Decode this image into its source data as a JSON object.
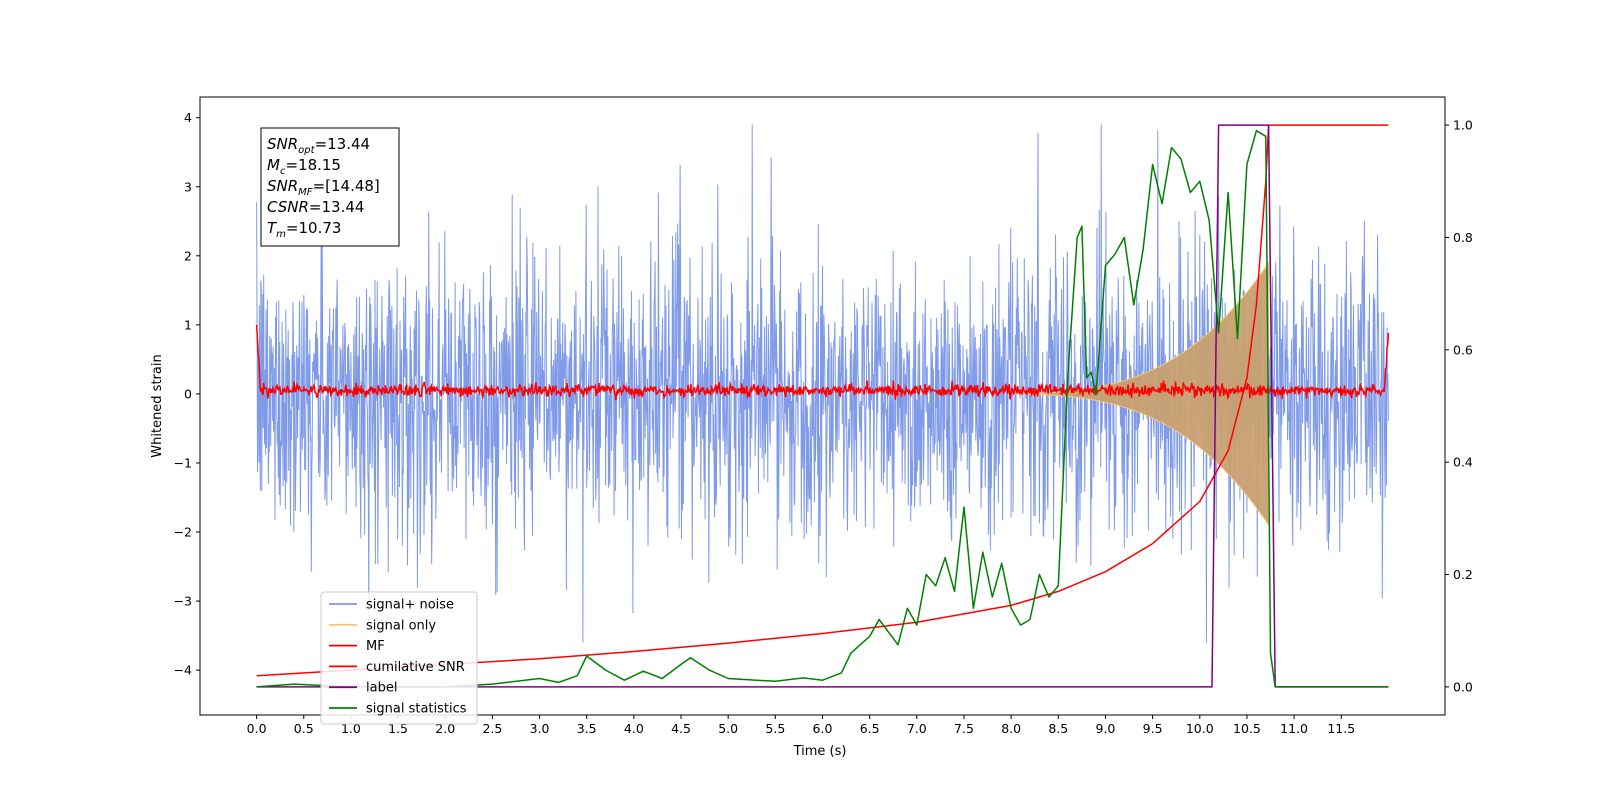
{
  "chart_data": {
    "type": "line",
    "xlabel": "Time (s)",
    "ylabel": "Whitened strain",
    "xlim": [
      -0.6,
      12.6
    ],
    "ylim": [
      -4.65,
      4.3
    ],
    "y2lim": [
      -0.05,
      1.05
    ],
    "x_ticks": [
      "0.0",
      "0.5",
      "1.0",
      "1.5",
      "2.0",
      "2.5",
      "3.0",
      "3.5",
      "4.0",
      "4.5",
      "5.0",
      "5.5",
      "6.0",
      "6.5",
      "7.0",
      "7.5",
      "8.0",
      "8.5",
      "9.0",
      "9.5",
      "10.0",
      "10.5",
      "11.0",
      "11.5"
    ],
    "y_ticks": [
      "4",
      "3",
      "2",
      "1",
      "0",
      "−1",
      "−2",
      "−3",
      "−4"
    ],
    "y2_ticks": [
      "1.0",
      "0.8",
      "0.6",
      "0.4",
      "0.2",
      "0.0"
    ],
    "annotation": {
      "snr_opt": {
        "base": "SNR",
        "sub": "opt",
        "value": "=13.44"
      },
      "mc": {
        "base": "M",
        "sub": "c",
        "value": "=18.15"
      },
      "snr_mf": {
        "base": "SNR",
        "sub": "MF",
        "value": "=[14.48]"
      },
      "csnr": {
        "base": "CSNR",
        "sub": "",
        "value": "=13.44"
      },
      "tm": {
        "base": "T",
        "sub": "m",
        "value": "=10.73"
      }
    },
    "legend_position": "lower-left",
    "series": [
      {
        "name": "signal+ noise",
        "color": "#7895e8",
        "axis": "left",
        "description_range": [
          -3.6,
          3.9
        ]
      },
      {
        "name": "signal only",
        "color": "#f5c97a",
        "axis": "left",
        "merger_time": 10.73,
        "max_amplitude": 1.9
      },
      {
        "name": "MF",
        "color": "#ff0000",
        "axis": "left",
        "baseline": 0.05,
        "edge_peak": 1.0
      },
      {
        "name": "cumilative SNR",
        "color": "#ff0000",
        "axis": "right",
        "x": [
          0.0,
          1.0,
          2.0,
          3.0,
          4.0,
          5.0,
          6.0,
          7.0,
          7.5,
          8.0,
          8.5,
          9.0,
          9.5,
          10.0,
          10.3,
          10.5,
          10.6,
          10.7,
          10.73,
          10.8,
          12.0
        ],
        "values": [
          0.02,
          0.03,
          0.04,
          0.05,
          0.063,
          0.078,
          0.095,
          0.115,
          0.13,
          0.145,
          0.17,
          0.205,
          0.255,
          0.33,
          0.42,
          0.55,
          0.68,
          0.9,
          1.0,
          1.0,
          1.0
        ]
      },
      {
        "name": "label",
        "color": "#800080",
        "axis": "right",
        "x": [
          0.0,
          10.13,
          10.2,
          10.73,
          10.8,
          12.0
        ],
        "values": [
          0.0,
          0.0,
          1.0,
          1.0,
          0.0,
          0.0
        ]
      },
      {
        "name": "signal statistics",
        "color": "#008000",
        "axis": "right",
        "x": [
          0.0,
          0.4,
          1.0,
          2.0,
          2.5,
          3.0,
          3.2,
          3.4,
          3.5,
          3.7,
          3.9,
          4.1,
          4.3,
          4.5,
          4.6,
          4.8,
          5.0,
          5.5,
          5.8,
          6.0,
          6.2,
          6.3,
          6.5,
          6.6,
          6.8,
          6.9,
          7.0,
          7.1,
          7.2,
          7.3,
          7.4,
          7.5,
          7.6,
          7.7,
          7.8,
          7.9,
          8.0,
          8.1,
          8.2,
          8.3,
          8.4,
          8.5,
          8.6,
          8.7,
          8.75,
          8.8,
          8.85,
          8.9,
          9.0,
          9.1,
          9.2,
          9.3,
          9.4,
          9.5,
          9.6,
          9.7,
          9.8,
          9.9,
          10.0,
          10.1,
          10.2,
          10.3,
          10.4,
          10.5,
          10.6,
          10.7,
          10.75,
          10.8,
          12.0
        ],
        "values": [
          0.0,
          0.005,
          0.0,
          0.0,
          0.005,
          0.015,
          0.008,
          0.02,
          0.055,
          0.03,
          0.012,
          0.028,
          0.015,
          0.04,
          0.052,
          0.03,
          0.015,
          0.01,
          0.016,
          0.012,
          0.025,
          0.06,
          0.09,
          0.12,
          0.075,
          0.14,
          0.11,
          0.2,
          0.18,
          0.23,
          0.17,
          0.32,
          0.14,
          0.24,
          0.16,
          0.22,
          0.14,
          0.11,
          0.12,
          0.2,
          0.16,
          0.18,
          0.55,
          0.8,
          0.82,
          0.55,
          0.56,
          0.52,
          0.75,
          0.77,
          0.8,
          0.68,
          0.78,
          0.93,
          0.86,
          0.96,
          0.94,
          0.88,
          0.9,
          0.83,
          0.63,
          0.88,
          0.62,
          0.93,
          0.99,
          0.98,
          0.06,
          0.0,
          0.0
        ]
      }
    ]
  }
}
